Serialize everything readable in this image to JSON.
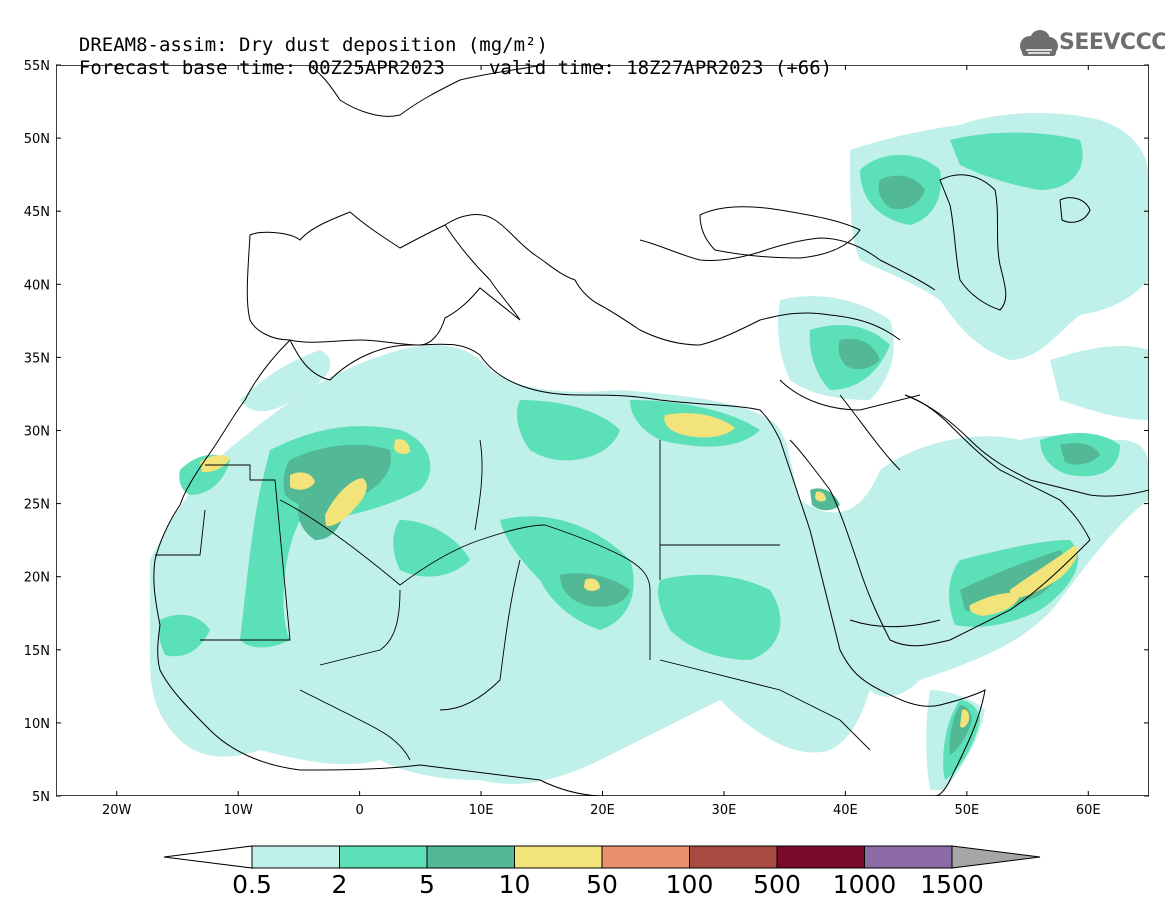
{
  "header": {
    "title_line1": "DREAM8-assim: Dry dust deposition (mg/m²)",
    "forecast_base": "Forecast base time: 00Z25APR2023",
    "valid_time": "valid time: 18Z27APR2023 (+66)"
  },
  "logo": {
    "text": "SEEVCCC",
    "icon": "cloud-icon"
  },
  "map": {
    "region": "North Africa, Middle East and Southern Europe",
    "lon_range": [
      -25,
      65
    ],
    "lat_range": [
      5,
      55
    ],
    "lat_ticks": [
      {
        "value": 55,
        "label": "55N"
      },
      {
        "value": 50,
        "label": "50N"
      },
      {
        "value": 45,
        "label": "45N"
      },
      {
        "value": 40,
        "label": "40N"
      },
      {
        "value": 35,
        "label": "35N"
      },
      {
        "value": 30,
        "label": "30N"
      },
      {
        "value": 25,
        "label": "25N"
      },
      {
        "value": 20,
        "label": "20N"
      },
      {
        "value": 15,
        "label": "15N"
      },
      {
        "value": 10,
        "label": "10N"
      },
      {
        "value": 5,
        "label": "5N"
      }
    ],
    "lon_ticks": [
      {
        "value": -20,
        "label": "20W"
      },
      {
        "value": -10,
        "label": "10W"
      },
      {
        "value": 0,
        "label": "0"
      },
      {
        "value": 10,
        "label": "10E"
      },
      {
        "value": 20,
        "label": "20E"
      },
      {
        "value": 30,
        "label": "30E"
      },
      {
        "value": 40,
        "label": "40E"
      },
      {
        "value": 50,
        "label": "50E"
      },
      {
        "value": 60,
        "label": "60E"
      }
    ]
  },
  "colorbar": {
    "levels": [
      "0.5",
      "2",
      "5",
      "10",
      "50",
      "100",
      "500",
      "1000",
      "1500"
    ],
    "colors": [
      "#bff0ea",
      "#5ce0b8",
      "#52b895",
      "#f2e37a",
      "#e8906c",
      "#a64a42",
      "#7a0a2a",
      "#8c6ba6",
      "#a6a6a6"
    ],
    "under_color": "#ffffff",
    "over_color": "#a6a6a6"
  }
}
